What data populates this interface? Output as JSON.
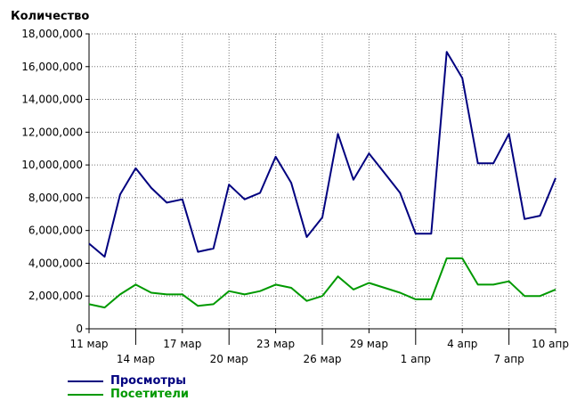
{
  "chart_data": {
    "type": "line",
    "ylabel": "Количество",
    "ylim": [
      0,
      18000000
    ],
    "y_ticks": [
      "0",
      "2,000,000",
      "4,000,000",
      "6,000,000",
      "8,000,000",
      "10,000,000",
      "12,000,000",
      "14,000,000",
      "16,000,000",
      "18,000,000"
    ],
    "y_tick_values": [
      0,
      2000000,
      4000000,
      6000000,
      8000000,
      10000000,
      12000000,
      14000000,
      16000000,
      18000000
    ],
    "x": [
      "11 мар",
      "12 мар",
      "13 мар",
      "14 мар",
      "15 мар",
      "16 мар",
      "17 мар",
      "18 мар",
      "19 мар",
      "20 мар",
      "21 мар",
      "22 мар",
      "23 мар",
      "24 мар",
      "25 мар",
      "26 мар",
      "27 мар",
      "28 мар",
      "29 мар",
      "30 мар",
      "31 мар",
      "1 апр",
      "2 апр",
      "3 апр",
      "4 апр",
      "5 апр",
      "6 апр",
      "7 апр",
      "8 апр",
      "9 апр",
      "10 апр"
    ],
    "x_tick_labels": [
      {
        "index": 0,
        "label": "11 мар",
        "row": 1
      },
      {
        "index": 3,
        "label": "14 мар",
        "row": 2
      },
      {
        "index": 6,
        "label": "17 мар",
        "row": 1
      },
      {
        "index": 9,
        "label": "20 мар",
        "row": 2
      },
      {
        "index": 12,
        "label": "23 мар",
        "row": 1
      },
      {
        "index": 15,
        "label": "26 мар",
        "row": 2
      },
      {
        "index": 18,
        "label": "29 мар",
        "row": 1
      },
      {
        "index": 21,
        "label": "1 апр",
        "row": 2
      },
      {
        "index": 24,
        "label": "4 апр",
        "row": 1
      },
      {
        "index": 27,
        "label": "7 апр",
        "row": 2
      },
      {
        "index": 30,
        "label": "10 апр",
        "row": 1
      }
    ],
    "grid": true,
    "legend_position": "bottom-left",
    "series": [
      {
        "name": "Просмотры",
        "color": "#00007F",
        "values": [
          5200000,
          4400000,
          8200000,
          9800000,
          8600000,
          7700000,
          7900000,
          4700000,
          4900000,
          8800000,
          7900000,
          8300000,
          10500000,
          8900000,
          5600000,
          6800000,
          11900000,
          9100000,
          10700000,
          9500000,
          8300000,
          5800000,
          5800000,
          16900000,
          15300000,
          10100000,
          10100000,
          11900000,
          6700000,
          6900000,
          9200000
        ]
      },
      {
        "name": "Посетители",
        "color": "#009900",
        "values": [
          1500000,
          1300000,
          2100000,
          2700000,
          2200000,
          2100000,
          2100000,
          1400000,
          1500000,
          2300000,
          2100000,
          2300000,
          2700000,
          2500000,
          1700000,
          2000000,
          3200000,
          2400000,
          2800000,
          2500000,
          2200000,
          1800000,
          1800000,
          4300000,
          4300000,
          2700000,
          2700000,
          2900000,
          2000000,
          2000000,
          2400000
        ]
      }
    ]
  }
}
